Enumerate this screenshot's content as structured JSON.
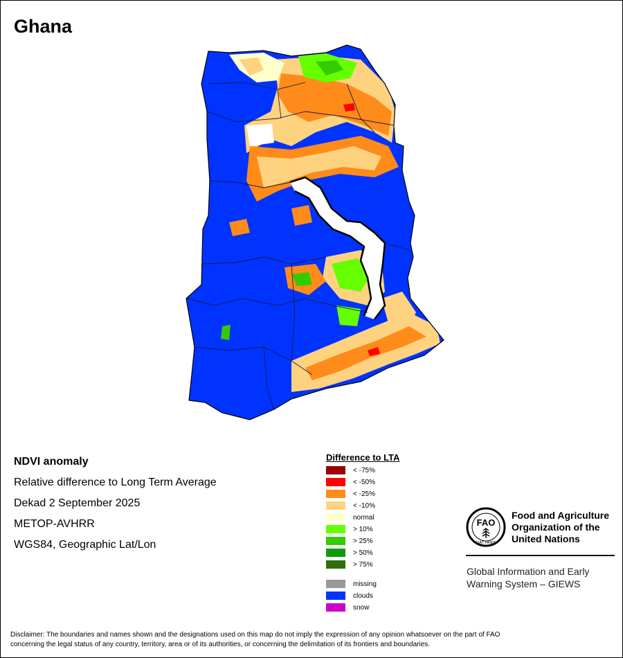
{
  "map_title": "Ghana",
  "info": {
    "product": "NDVI anomaly",
    "description": "Relative difference to Long Term Average",
    "period": "Dekad 2 September 2025",
    "sensor": "METOP-AVHRR",
    "projection": "WGS84, Geographic Lat/Lon"
  },
  "legend": {
    "title": "Difference to LTA",
    "classes": [
      {
        "label": "< -75%",
        "color": "#990000"
      },
      {
        "label": "< -50%",
        "color": "#ff0000"
      },
      {
        "label": "< -25%",
        "color": "#ff8c1a"
      },
      {
        "label": "< -10%",
        "color": "#ffd27f"
      },
      {
        "label": "normal",
        "color": "#ffffcc"
      },
      {
        "label": "> 10%",
        "color": "#66ff00"
      },
      {
        "label": "> 25%",
        "color": "#33cc00"
      },
      {
        "label": "> 50%",
        "color": "#119911"
      },
      {
        "label": "> 75%",
        "color": "#2d6e0e"
      }
    ],
    "other": [
      {
        "label": "missing",
        "color": "#999999"
      },
      {
        "label": "clouds",
        "color": "#0033ff"
      },
      {
        "label": "snow",
        "color": "#cc00cc"
      }
    ]
  },
  "organization": {
    "logo_text": "FAO",
    "logo_motto": "FIAT PANIS",
    "line1": "Food and Agriculture",
    "line2": "Organization of the",
    "line3": "United Nations"
  },
  "giews": {
    "line1": "Global Information and Early",
    "line2": "Warning System – GIEWS"
  },
  "disclaimer": {
    "line1": "Disclaimer: The boundaries and names shown and the designations used on this map do not imply the expression of any opinion whatsoever on the part of FAO",
    "line2": "concerning the legal status of any country, territory, area or of its authorities, or concerning the delimitation of its frontiers and boundaries."
  }
}
